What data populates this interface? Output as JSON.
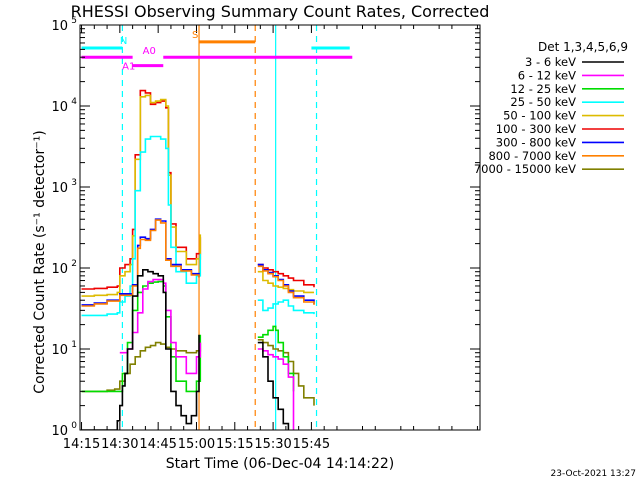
{
  "chart_data": {
    "type": "line",
    "title": "RHESSI Observing Summary Count Rates, Corrected",
    "xlabel": "Start Time (06-Dec-04 14:14:22)",
    "ylabel": "Corrected Count Rate (s⁻¹ detector⁻¹)",
    "footer": "23-Oct-2021 13:27",
    "x_unit": "minutes after 14:00 UT",
    "xlim": [
      14.4,
      171
    ],
    "ylim": [
      1,
      100000
    ],
    "y_scale": "log",
    "x_ticks": [
      {
        "value": 15,
        "label": "14:15"
      },
      {
        "value": 30,
        "label": "14:30"
      },
      {
        "value": 45,
        "label": "14:45"
      },
      {
        "value": 60,
        "label": "15:00"
      },
      {
        "value": 75,
        "label": "15:15"
      },
      {
        "value": 90,
        "label": "15:30"
      },
      {
        "value": 105,
        "label": "15:45"
      }
    ],
    "y_ticks": [
      {
        "value": 1,
        "base": "10",
        "exp": "0"
      },
      {
        "value": 10,
        "base": "10",
        "exp": "1"
      },
      {
        "value": 100,
        "base": "10",
        "exp": "2"
      },
      {
        "value": 1000,
        "base": "10",
        "exp": "3"
      },
      {
        "value": 10000,
        "base": "10",
        "exp": "4"
      },
      {
        "value": 100000,
        "base": "10",
        "exp": "5"
      }
    ],
    "legend": {
      "title": "Det 1,3,4,5,6,9",
      "placement": "right"
    },
    "data_gap": [
      62,
      83
    ],
    "series": [
      {
        "name": "3 - 6 keV",
        "color": "#000000",
        "x": [
          15,
          28,
          29,
          30,
          31,
          32,
          33,
          35,
          37,
          39,
          41,
          43,
          45,
          47,
          48,
          50,
          52,
          54,
          56,
          58,
          60,
          61,
          84,
          86,
          88,
          90,
          92,
          94,
          96
        ],
        "y": [
          1,
          1,
          1.3,
          2,
          3.5,
          5,
          10,
          45,
          80,
          95,
          90,
          85,
          80,
          50,
          10,
          3,
          2,
          1.5,
          1.2,
          1.5,
          3,
          15,
          12,
          8,
          4,
          2.5,
          1.8,
          1.2,
          1
        ]
      },
      {
        "name": "6 - 12 keV",
        "color": "#ff00ff",
        "x": [
          30,
          31,
          32,
          33,
          35,
          37,
          39,
          41,
          43,
          45,
          47,
          48,
          50,
          52,
          56,
          60,
          61.5,
          84,
          86,
          88,
          90,
          92,
          94,
          96,
          98
        ],
        "y": [
          9,
          9,
          9,
          10,
          16,
          28,
          55,
          68,
          72,
          72,
          65,
          30,
          12,
          8,
          5,
          8,
          12,
          10,
          9.5,
          8.5,
          8,
          7.5,
          6.5,
          4.5,
          1
        ]
      },
      {
        "name": "12 - 25 keV",
        "color": "#00dd00",
        "x": [
          15,
          20,
          25,
          29,
          31,
          33,
          35,
          37,
          39,
          41,
          43,
          45,
          47,
          48,
          50,
          52,
          56,
          60,
          61.5,
          84,
          86,
          88,
          90,
          91,
          92,
          94,
          96,
          98
        ],
        "y": [
          3,
          3,
          3,
          3,
          5,
          12,
          30,
          50,
          60,
          65,
          67,
          68,
          60,
          25,
          8,
          4,
          3,
          4,
          15,
          14,
          15,
          17,
          19,
          17,
          12,
          8,
          5,
          3
        ]
      },
      {
        "name": "25 - 50 keV",
        "color": "#00ffff",
        "x": [
          15,
          20,
          25,
          29,
          30,
          32,
          34,
          35,
          36,
          38,
          40,
          42,
          44,
          46,
          48,
          49,
          50,
          52,
          56,
          60,
          61.5,
          84,
          86,
          88,
          90,
          92,
          94,
          96,
          98,
          102,
          106
        ],
        "y": [
          26,
          26,
          27,
          28,
          38,
          45,
          60,
          130,
          900,
          2700,
          3900,
          4200,
          4200,
          3900,
          3000,
          600,
          180,
          90,
          65,
          80,
          150,
          40,
          30,
          32,
          36,
          38,
          40,
          34,
          30,
          28,
          27
        ]
      },
      {
        "name": "50 - 100 keV",
        "color": "#ddbb00",
        "x": [
          15,
          20,
          25,
          29,
          30,
          32,
          34,
          35,
          36,
          38,
          40,
          42,
          44,
          46,
          48,
          49,
          50,
          52,
          56,
          60,
          61.5,
          84,
          86,
          88,
          90,
          92,
          94,
          96,
          98,
          102,
          106
        ],
        "y": [
          45,
          46,
          47,
          50,
          80,
          90,
          110,
          250,
          2200,
          13000,
          13500,
          11000,
          11500,
          12000,
          10000,
          1400,
          320,
          160,
          110,
          130,
          260,
          90,
          70,
          65,
          60,
          58,
          56,
          54,
          52,
          50,
          50
        ]
      },
      {
        "name": "100 - 300 keV",
        "color": "#ee0000",
        "x": [
          15,
          20,
          25,
          29,
          30,
          32,
          34,
          35,
          36,
          38,
          40,
          42,
          44,
          46,
          48,
          49,
          50,
          52,
          56,
          60,
          61.5,
          84,
          86,
          88,
          90,
          92,
          94,
          96,
          98,
          102,
          106
        ],
        "y": [
          55,
          56,
          58,
          60,
          100,
          110,
          130,
          300,
          2500,
          15500,
          14500,
          10500,
          11000,
          11500,
          9500,
          1500,
          350,
          180,
          130,
          150,
          240,
          110,
          100,
          95,
          90,
          85,
          80,
          75,
          70,
          62,
          58
        ]
      },
      {
        "name": "300 - 800 keV",
        "color": "#0000ff",
        "x": [
          15,
          20,
          25,
          30,
          35,
          37,
          38,
          40,
          42,
          44,
          46,
          48,
          50,
          54,
          58,
          61,
          84,
          86,
          88,
          90,
          92,
          94,
          96,
          98,
          102,
          106
        ],
        "y": [
          35,
          37,
          40,
          48,
          62,
          190,
          240,
          230,
          300,
          400,
          380,
          130,
          110,
          95,
          85,
          78,
          110,
          95,
          88,
          80,
          72,
          62,
          52,
          45,
          40,
          36
        ]
      },
      {
        "name": "800 - 7000 keV",
        "color": "#ff8000",
        "x": [
          15,
          20,
          25,
          30,
          35,
          37,
          38,
          40,
          42,
          44,
          46,
          48,
          50,
          54,
          58,
          61,
          84,
          86,
          88,
          90,
          92,
          94,
          96,
          98,
          102,
          106
        ],
        "y": [
          34,
          36,
          39,
          46,
          60,
          175,
          225,
          220,
          290,
          390,
          360,
          125,
          105,
          92,
          82,
          76,
          105,
          92,
          85,
          78,
          70,
          60,
          50,
          43,
          38,
          35
        ]
      },
      {
        "name": "7000 - 15000 keV",
        "color": "#808000",
        "x": [
          15,
          20,
          25,
          28,
          30,
          32,
          34,
          36,
          38,
          40,
          42,
          44,
          46,
          48,
          50,
          52,
          56,
          60,
          61.5,
          84,
          86,
          88,
          90,
          92,
          94,
          96,
          98,
          100,
          102,
          106
        ],
        "y": [
          3,
          3,
          3.1,
          3.2,
          4,
          5,
          6.5,
          8,
          9.5,
          10.5,
          11,
          12,
          11.5,
          10.5,
          10,
          9.5,
          9,
          9.5,
          12,
          13,
          12,
          11,
          10,
          9.5,
          9,
          7,
          5,
          3.5,
          2.5,
          2
        ]
      }
    ],
    "flag_bars": [
      {
        "label": "N",
        "color": "#00ffff",
        "y": 52000,
        "segments": [
          [
            15,
            31
          ],
          [
            105,
            120
          ]
        ],
        "label_x": 31.5
      },
      {
        "label": "A0",
        "color": "#ff00ff",
        "y": 40000,
        "segments": [
          [
            15,
            35
          ],
          [
            47,
            121
          ]
        ],
        "label_x": 41.5,
        "label_above": true
      },
      {
        "label": "A1",
        "color": "#ff00ff",
        "y": 31500,
        "segments": [
          [
            35,
            47
          ]
        ],
        "label_x": 33.5,
        "label_below": true
      },
      {
        "label": "S",
        "color": "#ff8000",
        "y": 62000,
        "segments": [
          [
            61,
            83
          ]
        ],
        "label_x": 59.5
      }
    ],
    "vlines": [
      {
        "x": 31,
        "color": "#00ffff",
        "dash": true
      },
      {
        "x": 61,
        "color": "#ff8000",
        "dash": false
      },
      {
        "x": 83,
        "color": "#ff8000",
        "dash": true
      },
      {
        "x": 91,
        "color": "#00ffff",
        "dash": false
      },
      {
        "x": 107,
        "color": "#00ffff",
        "dash": true
      }
    ]
  }
}
